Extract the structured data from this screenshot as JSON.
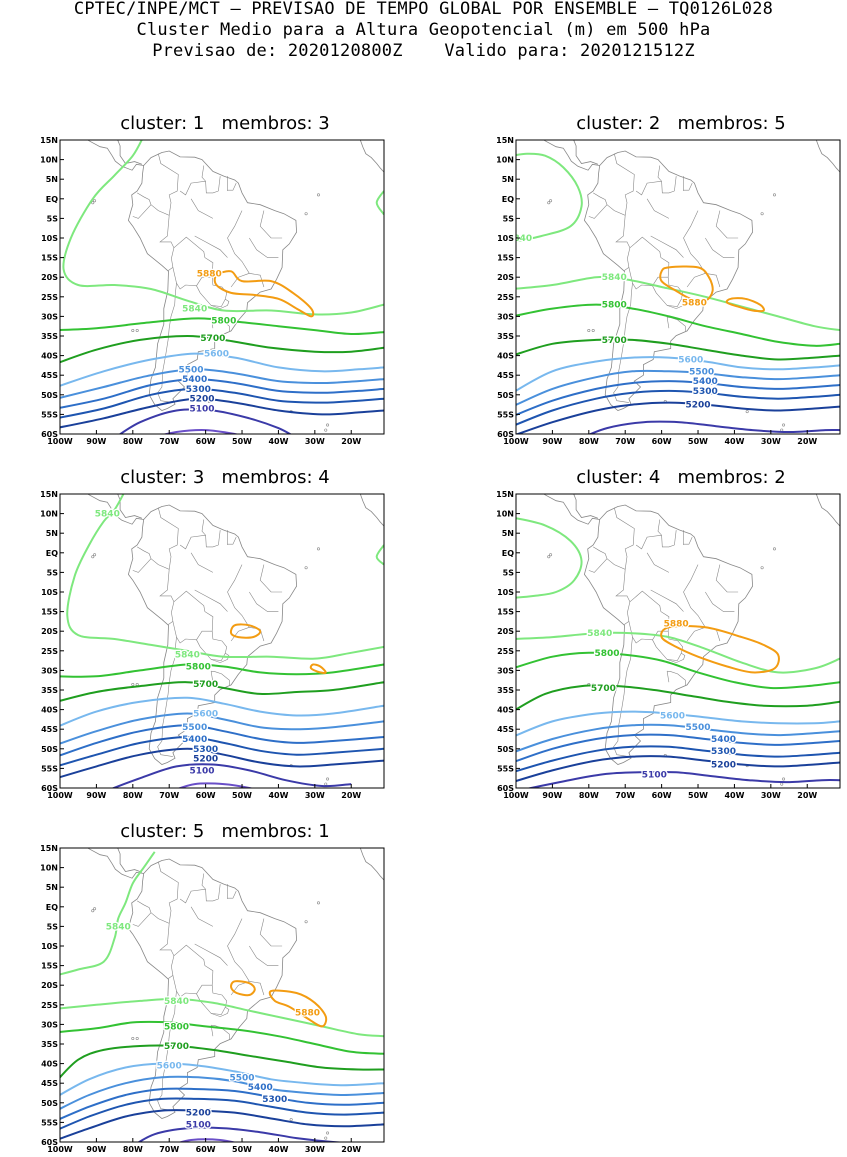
{
  "header": {
    "line1": "CPTEC/INPE/MCT – PREVISAO DE TEMPO GLOBAL POR ENSEMBLE – TQ0126L028",
    "line2": "Cluster Medio para a Altura Geopotencial (m) em 500 hPa",
    "line3": "Previsao de: 2020120800Z    Valido para: 2020121512Z"
  },
  "lat_ticks": [
    "15N",
    "10N",
    "5N",
    "EQ",
    "5S",
    "10S",
    "15S",
    "20S",
    "25S",
    "30S",
    "35S",
    "40S",
    "45S",
    "50S",
    "55S",
    "60S"
  ],
  "lon_ticks": [
    "100W",
    "90W",
    "80W",
    "70W",
    "60W",
    "50W",
    "40W",
    "30W",
    "20W"
  ],
  "colors": {
    "c5840": "#7ee87e",
    "c5800": "#33c233",
    "c5700": "#1f9e1f",
    "c5600": "#78b8ee",
    "c5500": "#4a90dc",
    "c5400": "#2e6fc8",
    "c5300": "#1e55b0",
    "c5200": "#1a409a",
    "c5100": "#3b3aa8",
    "c5000": "#6a4fc8",
    "c5880": "#f39c12",
    "coast": "#888888"
  },
  "panels": [
    {
      "title": "cluster: 1   membros: 3",
      "labels": [
        {
          "text": "5880",
          "c": "c5880",
          "lon": -59,
          "lat": -19
        },
        {
          "text": "5840",
          "c": "c5840",
          "lon": -63,
          "lat": -28
        },
        {
          "text": "5800",
          "c": "c5800",
          "lon": -55,
          "lat": -31
        },
        {
          "text": "5700",
          "c": "c5700",
          "lon": -58,
          "lat": -35.5
        },
        {
          "text": "5600",
          "c": "c5600",
          "lon": -57,
          "lat": -39.5
        },
        {
          "text": "5500",
          "c": "c5500",
          "lon": -64,
          "lat": -43.5
        },
        {
          "text": "5400",
          "c": "c5400",
          "lon": -63,
          "lat": -46
        },
        {
          "text": "5300",
          "c": "c5300",
          "lon": -62,
          "lat": -48.5
        },
        {
          "text": "5200",
          "c": "c5200",
          "lon": -61,
          "lat": -51
        },
        {
          "text": "5100",
          "c": "c5100",
          "lon": -61,
          "lat": -53.5
        }
      ]
    },
    {
      "title": "cluster: 2   membros: 5",
      "labels": [
        {
          "text": "5840",
          "c": "c5840",
          "lon": -99,
          "lat": -10
        },
        {
          "text": "5840",
          "c": "c5840",
          "lon": -73,
          "lat": -20
        },
        {
          "text": "5880",
          "c": "c5880",
          "lon": -51,
          "lat": -26.5
        },
        {
          "text": "5800",
          "c": "c5800",
          "lon": -73,
          "lat": -27
        },
        {
          "text": "5700",
          "c": "c5700",
          "lon": -73,
          "lat": -36
        },
        {
          "text": "5600",
          "c": "c5600",
          "lon": -52,
          "lat": -41
        },
        {
          "text": "5500",
          "c": "c5500",
          "lon": -49,
          "lat": -44
        },
        {
          "text": "5400",
          "c": "c5400",
          "lon": -48,
          "lat": -46.5
        },
        {
          "text": "5300",
          "c": "c5300",
          "lon": -48,
          "lat": -49
        },
        {
          "text": "5200",
          "c": "c5200",
          "lon": -50,
          "lat": -52.5
        }
      ]
    },
    {
      "title": "cluster: 3   membros: 4",
      "labels": [
        {
          "text": "5840",
          "c": "c5840",
          "lon": -87,
          "lat": 10
        },
        {
          "text": "5840",
          "c": "c5840",
          "lon": -65,
          "lat": -26
        },
        {
          "text": "5800",
          "c": "c5800",
          "lon": -62,
          "lat": -29
        },
        {
          "text": "5700",
          "c": "c5700",
          "lon": -60,
          "lat": -33.5
        },
        {
          "text": "5600",
          "c": "c5600",
          "lon": -60,
          "lat": -41
        },
        {
          "text": "5500",
          "c": "c5500",
          "lon": -63,
          "lat": -44.5
        },
        {
          "text": "5400",
          "c": "c5400",
          "lon": -63,
          "lat": -47.5
        },
        {
          "text": "5300",
          "c": "c5300",
          "lon": -60,
          "lat": -50
        },
        {
          "text": "5200",
          "c": "c5200",
          "lon": -60,
          "lat": -52.5
        },
        {
          "text": "5100",
          "c": "c5100",
          "lon": -61,
          "lat": -55.5
        }
      ]
    },
    {
      "title": "cluster: 4   membros: 2",
      "labels": [
        {
          "text": "5880",
          "c": "c5880",
          "lon": -56,
          "lat": -18
        },
        {
          "text": "5840",
          "c": "c5840",
          "lon": -77,
          "lat": -20.5
        },
        {
          "text": "5800",
          "c": "c5800",
          "lon": -75,
          "lat": -25.5
        },
        {
          "text": "5700",
          "c": "c5700",
          "lon": -76,
          "lat": -34.5
        },
        {
          "text": "5600",
          "c": "c5600",
          "lon": -57,
          "lat": -41.5
        },
        {
          "text": "5500",
          "c": "c5500",
          "lon": -50,
          "lat": -44.5
        },
        {
          "text": "5400",
          "c": "c5400",
          "lon": -43,
          "lat": -47.5
        },
        {
          "text": "5300",
          "c": "c5300",
          "lon": -43,
          "lat": -50.5
        },
        {
          "text": "5200",
          "c": "c5200",
          "lon": -43,
          "lat": -54
        },
        {
          "text": "5100",
          "c": "c5100",
          "lon": -62,
          "lat": -56.5
        }
      ]
    },
    {
      "title": "cluster: 5   membros: 1",
      "labels": [
        {
          "text": "5840",
          "c": "c5840",
          "lon": -84,
          "lat": -5
        },
        {
          "text": "5840",
          "c": "c5840",
          "lon": -68,
          "lat": -24
        },
        {
          "text": "5880",
          "c": "c5880",
          "lon": -32,
          "lat": -27
        },
        {
          "text": "5800",
          "c": "c5800",
          "lon": -68,
          "lat": -30.5
        },
        {
          "text": "5700",
          "c": "c5700",
          "lon": -68,
          "lat": -35.5
        },
        {
          "text": "5600",
          "c": "c5600",
          "lon": -70,
          "lat": -40.5
        },
        {
          "text": "5500",
          "c": "c5500",
          "lon": -50,
          "lat": -43.5
        },
        {
          "text": "5400",
          "c": "c5400",
          "lon": -45,
          "lat": -46
        },
        {
          "text": "5300",
          "c": "c5300",
          "lon": -41,
          "lat": -49
        },
        {
          "text": "5200",
          "c": "c5200",
          "lon": -62,
          "lat": -52.5
        },
        {
          "text": "5100",
          "c": "c5100",
          "lon": -62,
          "lat": -55.5
        }
      ]
    }
  ]
}
